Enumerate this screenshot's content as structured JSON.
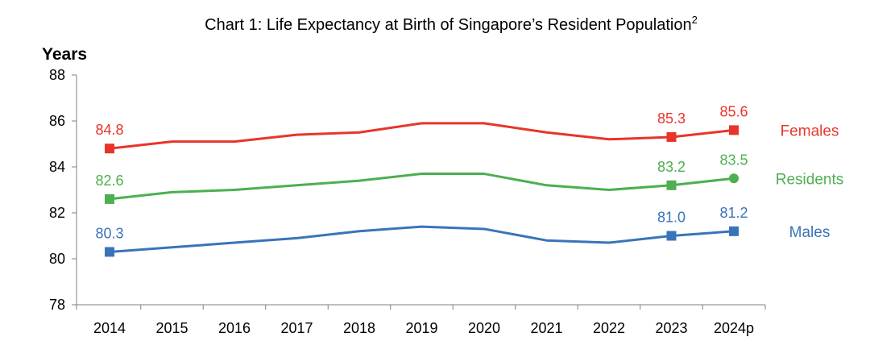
{
  "chart_data": {
    "type": "line",
    "title": "Chart 1: Life Expectancy at Birth of Singapore’s Resident Population",
    "title_superscript": "2",
    "ylabel": "Years",
    "xlabel": "",
    "ylim": [
      78,
      88
    ],
    "yticks": [
      "78",
      "80",
      "82",
      "84",
      "86",
      "88"
    ],
    "categories": [
      "2014",
      "2015",
      "2016",
      "2017",
      "2018",
      "2019",
      "2020",
      "2021",
      "2022",
      "2023",
      "2024p"
    ],
    "grid": false,
    "series": [
      {
        "name": "Females",
        "color": "#e8352a",
        "marker": "square",
        "last_marker": "square",
        "values": [
          84.8,
          85.1,
          85.1,
          85.4,
          85.5,
          85.9,
          85.9,
          85.5,
          85.2,
          85.3,
          85.6
        ],
        "labeled_points": [
          {
            "index": 0,
            "text": "84.8"
          },
          {
            "index": 9,
            "text": "85.3"
          },
          {
            "index": 10,
            "text": "85.6"
          }
        ]
      },
      {
        "name": "Residents",
        "color": "#4caf50",
        "marker": "square",
        "last_marker": "circle",
        "values": [
          82.6,
          82.9,
          83.0,
          83.2,
          83.4,
          83.7,
          83.7,
          83.2,
          83.0,
          83.2,
          83.5
        ],
        "labeled_points": [
          {
            "index": 0,
            "text": "82.6"
          },
          {
            "index": 9,
            "text": "83.2"
          },
          {
            "index": 10,
            "text": "83.5"
          }
        ]
      },
      {
        "name": "Males",
        "color": "#3a74b8",
        "marker": "square",
        "last_marker": "square",
        "values": [
          80.3,
          80.5,
          80.7,
          80.9,
          81.2,
          81.4,
          81.3,
          80.8,
          80.7,
          81.0,
          81.2
        ],
        "labeled_points": [
          {
            "index": 0,
            "text": "80.3"
          },
          {
            "index": 9,
            "text": "81.0"
          },
          {
            "index": 10,
            "text": "81.2"
          }
        ]
      }
    ]
  }
}
